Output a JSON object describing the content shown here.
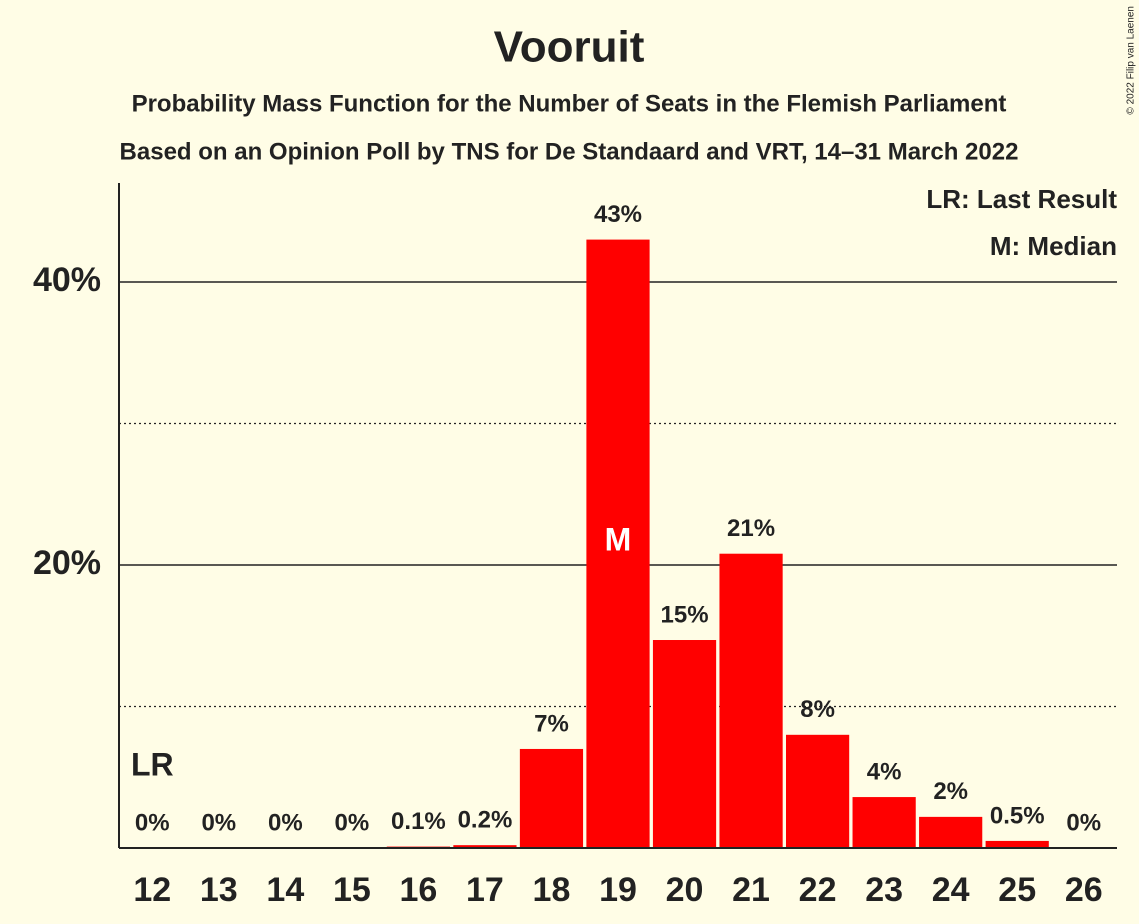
{
  "chart_data": {
    "type": "bar",
    "title": "Vooruit",
    "subtitle": "Probability Mass Function for the Number of Seats in the Flemish Parliament",
    "subtitle2": "Based on an Opinion Poll by TNS for De Standaard and VRT, 14–31 March 2022",
    "copyright": "© 2022 Filip van Laenen",
    "categories": [
      "12",
      "13",
      "14",
      "15",
      "16",
      "17",
      "18",
      "19",
      "20",
      "21",
      "22",
      "23",
      "24",
      "25",
      "26"
    ],
    "values": [
      0,
      0,
      0,
      0,
      0.1,
      0.2,
      7,
      43,
      14.7,
      20.8,
      8,
      3.6,
      2.2,
      0.5,
      0
    ],
    "value_labels": [
      "0%",
      "0%",
      "0%",
      "0%",
      "0.1%",
      "0.2%",
      "7%",
      "43%",
      "15%",
      "21%",
      "8%",
      "4%",
      "2%",
      "0.5%",
      "0%"
    ],
    "color": "#ff0000",
    "ylim": [
      0,
      47
    ],
    "yticks": [
      {
        "value": 20,
        "label": "20%"
      },
      {
        "value": 40,
        "label": "40%"
      }
    ],
    "minor_gridlines": [
      10,
      30
    ],
    "grid": true,
    "last_result": {
      "label": "LR",
      "category": "12"
    },
    "median": {
      "label": "M",
      "category": "19"
    },
    "legend": [
      "LR: Last Result",
      "M: Median"
    ],
    "legend_position": "top-right"
  }
}
